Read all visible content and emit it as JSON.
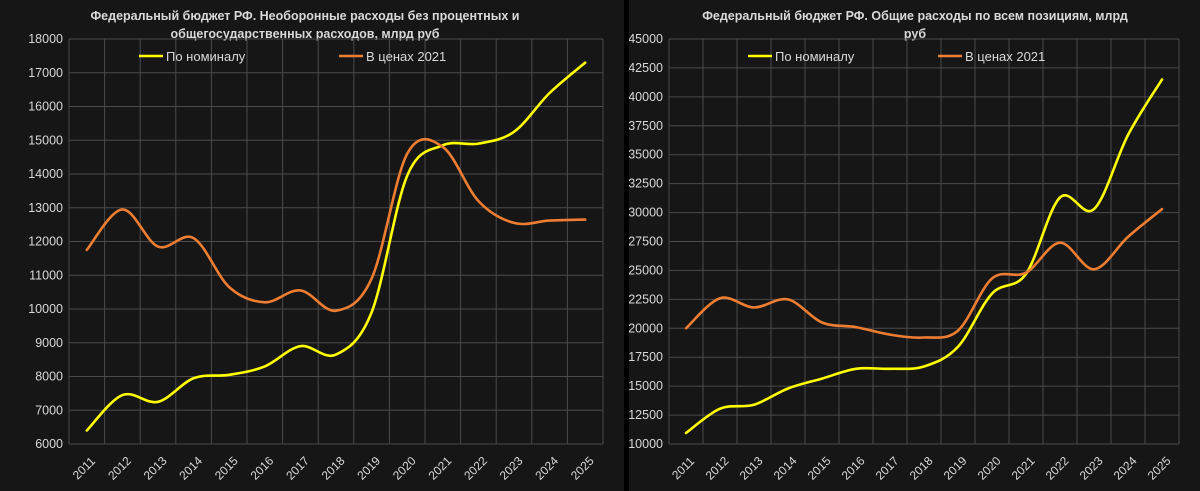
{
  "chart_data": [
    {
      "type": "line",
      "title_lines": [
        "Федеральный бюджет РФ. Необоронные расходы без процентных и",
        "общегосударственных расходов, млрд руб"
      ],
      "categories": [
        "2011",
        "2012",
        "2013",
        "2014",
        "2015",
        "2016",
        "2017",
        "2018",
        "2019",
        "2020",
        "2021",
        "2022",
        "2023",
        "2024",
        "2025"
      ],
      "ylim": [
        6000,
        18000
      ],
      "yticks": [
        6000,
        7000,
        8000,
        9000,
        10000,
        11000,
        12000,
        13000,
        14000,
        15000,
        16000,
        17000,
        18000
      ],
      "grid": true,
      "legend_position": "top",
      "series": [
        {
          "name": "По номиналу",
          "color": "#ffff00",
          "values": [
            6400,
            7450,
            7250,
            7950,
            8050,
            8300,
            8900,
            8650,
            9900,
            13950,
            14850,
            14900,
            15250,
            16400,
            17300
          ]
        },
        {
          "name": "В ценах 2021",
          "color": "#ed7d31",
          "values": [
            11750,
            12950,
            11850,
            12100,
            10650,
            10200,
            10550,
            9950,
            10900,
            14600,
            14800,
            13200,
            12550,
            12620,
            12650
          ]
        }
      ]
    },
    {
      "type": "line",
      "title_lines": [
        "Федеральный бюджет РФ.  Общие расходы по всем позициям, млрд",
        "руб"
      ],
      "categories": [
        "2011",
        "2012",
        "2013",
        "2014",
        "2015",
        "2016",
        "2017",
        "2018",
        "2019",
        "2020",
        "2021",
        "2022",
        "2023",
        "2024",
        "2025"
      ],
      "ylim": [
        10000,
        45000
      ],
      "yticks": [
        10000,
        12500,
        15000,
        17500,
        20000,
        22500,
        25000,
        27500,
        30000,
        32500,
        35000,
        37500,
        40000,
        42500,
        45000
      ],
      "grid": true,
      "legend_position": "top",
      "series": [
        {
          "name": "По номиналу",
          "color": "#ffff00",
          "values": [
            10950,
            13050,
            13400,
            14800,
            15650,
            16500,
            16500,
            16700,
            18400,
            23000,
            24700,
            31300,
            30300,
            36700,
            41500
          ]
        },
        {
          "name": "В ценах 2021",
          "color": "#ed7d31",
          "values": [
            20000,
            22600,
            21800,
            22500,
            20500,
            20100,
            19450,
            19200,
            19800,
            24300,
            24800,
            27400,
            25100,
            27900,
            30300
          ]
        }
      ]
    }
  ]
}
